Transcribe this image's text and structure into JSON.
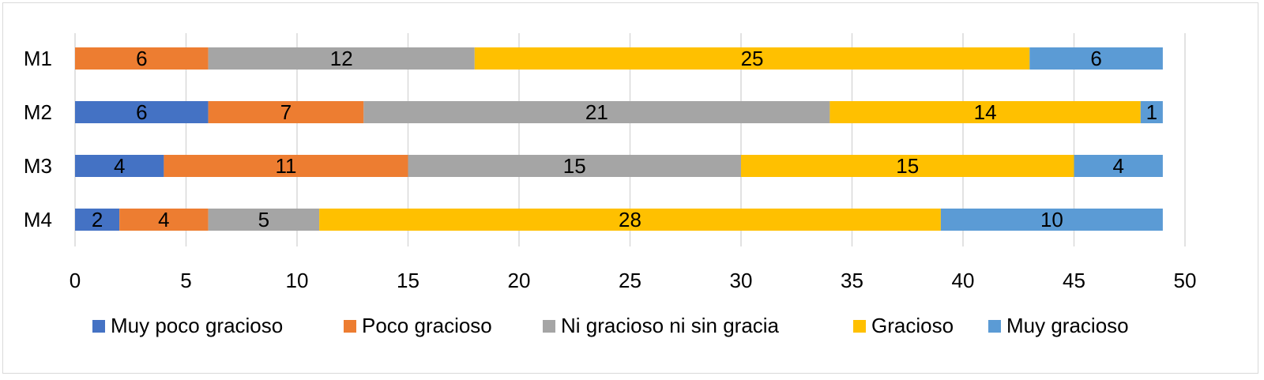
{
  "chart_data": {
    "type": "bar",
    "orientation": "horizontal",
    "stacked": true,
    "title": "",
    "xlabel": "",
    "ylabel": "",
    "categories": [
      "M1",
      "M2",
      "M3",
      "M4"
    ],
    "xlim": [
      0,
      50
    ],
    "xticks": [
      0,
      5,
      10,
      15,
      20,
      25,
      30,
      35,
      40,
      45,
      50
    ],
    "grid": "vertical",
    "legend_position": "bottom",
    "series": [
      {
        "name": "Muy poco gracioso",
        "color": "#4472C4",
        "values": [
          0,
          6,
          4,
          2
        ]
      },
      {
        "name": "Poco gracioso",
        "color": "#ED7D31",
        "values": [
          6,
          7,
          11,
          4
        ]
      },
      {
        "name": "Ni gracioso ni sin gracia",
        "color": "#A5A5A5",
        "values": [
          12,
          21,
          15,
          5
        ]
      },
      {
        "name": "Gracioso",
        "color": "#FFC000",
        "values": [
          25,
          14,
          15,
          28
        ]
      },
      {
        "name": "Muy gracioso",
        "color": "#5B9BD5",
        "values": [
          6,
          1,
          4,
          10
        ]
      }
    ]
  }
}
